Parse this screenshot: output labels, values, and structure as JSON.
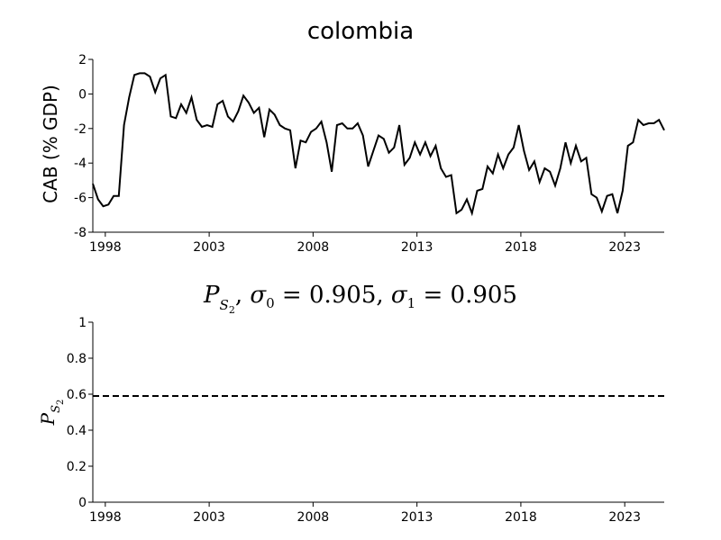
{
  "chart_data": [
    {
      "type": "line",
      "title": "colombia",
      "xlabel": "",
      "ylabel": "CAB (% GDP)",
      "xlim": [
        1997.4,
        2024.9
      ],
      "ylim": [
        -8,
        2
      ],
      "yticks": [
        2,
        0,
        -2,
        -4,
        -6,
        -8
      ],
      "xticks": [
        1998,
        2003,
        2008,
        2013,
        2018,
        2023
      ],
      "series": [
        {
          "color": "#000000",
          "x": [
            1997.4,
            1997.65,
            1997.9,
            1998.15,
            1998.4,
            1998.65,
            1998.9,
            1999.15,
            1999.4,
            1999.65,
            1999.9,
            2000.15,
            2000.4,
            2000.65,
            2000.9,
            2001.15,
            2001.4,
            2001.65,
            2001.9,
            2002.15,
            2002.4,
            2002.65,
            2002.9,
            2003.15,
            2003.4,
            2003.65,
            2003.9,
            2004.15,
            2004.4,
            2004.65,
            2004.9,
            2005.15,
            2005.4,
            2005.65,
            2005.9,
            2006.15,
            2006.4,
            2006.65,
            2006.9,
            2007.15,
            2007.4,
            2007.65,
            2007.9,
            2008.15,
            2008.4,
            2008.65,
            2008.9,
            2009.15,
            2009.4,
            2009.65,
            2009.9,
            2010.15,
            2010.4,
            2010.65,
            2010.9,
            2011.15,
            2011.4,
            2011.65,
            2011.9,
            2012.15,
            2012.4,
            2012.65,
            2012.9,
            2013.15,
            2013.4,
            2013.65,
            2013.9,
            2014.15,
            2014.4,
            2014.65,
            2014.9,
            2015.15,
            2015.4,
            2015.65,
            2015.9,
            2016.15,
            2016.4,
            2016.65,
            2016.9,
            2017.15,
            2017.4,
            2017.65,
            2017.9,
            2018.15,
            2018.4,
            2018.65,
            2018.9,
            2019.15,
            2019.4,
            2019.65,
            2019.9,
            2020.15,
            2020.4,
            2020.65,
            2020.9,
            2021.15,
            2021.4,
            2021.65,
            2021.9,
            2022.15,
            2022.4,
            2022.65,
            2022.9,
            2023.15,
            2023.4,
            2023.65,
            2023.9,
            2024.15,
            2024.4,
            2024.65,
            2024.9
          ],
          "y": [
            -5.2,
            -6.1,
            -6.5,
            -6.4,
            -5.9,
            -5.9,
            -1.8,
            -0.2,
            1.1,
            1.2,
            1.2,
            1.0,
            0.1,
            0.9,
            1.1,
            -1.3,
            -1.4,
            -0.6,
            -1.1,
            -0.2,
            -1.5,
            -1.9,
            -1.8,
            -1.9,
            -0.6,
            -0.4,
            -1.3,
            -1.6,
            -1.0,
            -0.1,
            -0.5,
            -1.1,
            -0.8,
            -2.5,
            -0.9,
            -1.2,
            -1.8,
            -2.0,
            -2.1,
            -4.3,
            -2.7,
            -2.8,
            -2.2,
            -2.0,
            -1.6,
            -2.8,
            -4.5,
            -1.8,
            -1.7,
            -2.0,
            -2.0,
            -1.7,
            -2.4,
            -4.2,
            -3.3,
            -2.4,
            -2.6,
            -3.4,
            -3.1,
            -1.8,
            -4.1,
            -3.7,
            -2.8,
            -3.5,
            -2.8,
            -3.6,
            -3.0,
            -4.3,
            -4.8,
            -4.7,
            -6.9,
            -6.7,
            -6.1,
            -6.9,
            -5.6,
            -5.5,
            -4.2,
            -4.6,
            -3.5,
            -4.3,
            -3.5,
            -3.1,
            -1.8,
            -3.3,
            -4.4,
            -3.9,
            -5.1,
            -4.3,
            -4.5,
            -5.3,
            -4.3,
            -2.8,
            -4.0,
            -3.0,
            -3.9,
            -3.7,
            -5.8,
            -6.0,
            -6.8,
            -5.9,
            -5.8,
            -6.9,
            -5.6,
            -3.0,
            -2.8,
            -1.5,
            -1.8,
            -1.7,
            -1.7,
            -1.5,
            -2.1
          ]
        }
      ]
    },
    {
      "type": "line",
      "title": "P_{S_2}, σ0 = 0.905, σ1 = 0.905",
      "xlabel": "",
      "ylabel": "P_{S_2}",
      "xlim": [
        1997.4,
        2024.9
      ],
      "ylim": [
        0,
        1
      ],
      "yticks": [
        1,
        0.8,
        0.6,
        0.4,
        0.2,
        0
      ],
      "xticks": [
        1998,
        2003,
        2008,
        2013,
        2018,
        2023
      ],
      "series": [
        {
          "style": "dashed",
          "color": "#000000",
          "x": [
            1997.4,
            2024.9
          ],
          "y": [
            0.59,
            0.59
          ]
        }
      ]
    }
  ]
}
